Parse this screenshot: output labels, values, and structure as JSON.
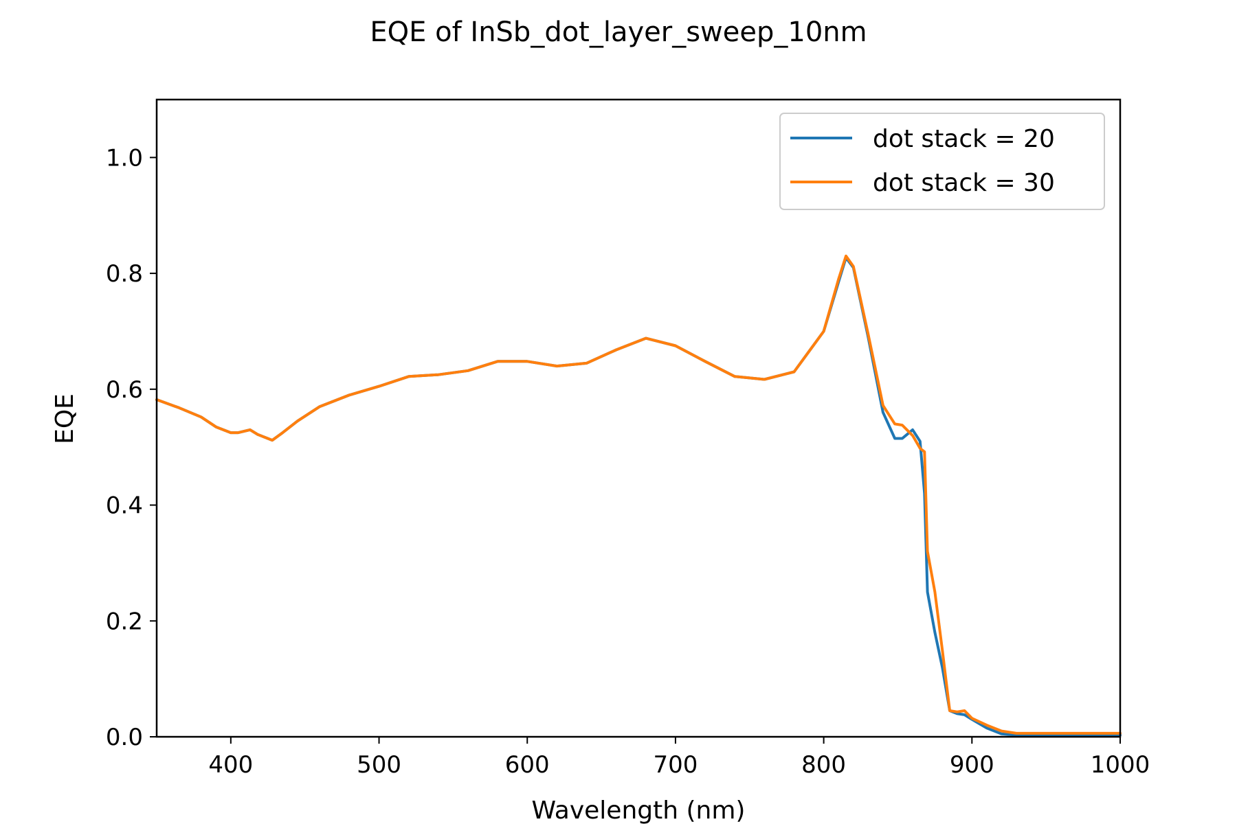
{
  "chart_data": {
    "type": "line",
    "title": "EQE of  InSb_dot_layer_sweep_10nm",
    "xlabel": "Wavelength (nm)",
    "ylabel": "EQE",
    "xlim": [
      350,
      1000
    ],
    "ylim": [
      0,
      1.1
    ],
    "xticks": [
      400,
      500,
      600,
      700,
      800,
      900,
      1000
    ],
    "xtick_labels": [
      "400",
      "500",
      "600",
      "700",
      "800",
      "900",
      "1000"
    ],
    "yticks": [
      0.0,
      0.2,
      0.4,
      0.6,
      0.8,
      1.0
    ],
    "ytick_labels": [
      "0.0",
      "0.2",
      "0.4",
      "0.6",
      "0.8",
      "1.0"
    ],
    "grid": false,
    "legend_position": "top-right",
    "series": [
      {
        "name": "dot stack = 20",
        "color": "#1f77b4",
        "x": [
          350,
          365,
          380,
          390,
          400,
          405,
          413,
          418,
          428,
          435,
          445,
          460,
          480,
          500,
          520,
          540,
          560,
          580,
          600,
          620,
          640,
          660,
          680,
          700,
          720,
          740,
          760,
          780,
          800,
          810,
          815,
          820,
          830,
          840,
          848,
          853,
          860,
          865,
          868,
          870,
          875,
          880,
          885,
          890,
          895,
          900,
          910,
          920,
          930,
          950,
          970,
          1000
        ],
        "y": [
          0.582,
          0.568,
          0.552,
          0.535,
          0.525,
          0.525,
          0.53,
          0.522,
          0.512,
          0.525,
          0.545,
          0.57,
          0.59,
          0.605,
          0.622,
          0.625,
          0.632,
          0.648,
          0.648,
          0.64,
          0.645,
          0.668,
          0.688,
          0.675,
          0.648,
          0.622,
          0.617,
          0.63,
          0.7,
          0.785,
          0.827,
          0.81,
          0.69,
          0.56,
          0.515,
          0.515,
          0.53,
          0.51,
          0.42,
          0.25,
          0.18,
          0.12,
          0.045,
          0.04,
          0.038,
          0.03,
          0.015,
          0.005,
          0.003,
          0.003,
          0.003,
          0.003
        ]
      },
      {
        "name": "dot stack = 30",
        "color": "#ff7f0e",
        "x": [
          350,
          365,
          380,
          390,
          400,
          405,
          413,
          418,
          428,
          435,
          445,
          460,
          480,
          500,
          520,
          540,
          560,
          580,
          600,
          620,
          640,
          660,
          680,
          700,
          720,
          740,
          760,
          780,
          800,
          810,
          815,
          820,
          830,
          840,
          848,
          853,
          860,
          865,
          868,
          870,
          875,
          880,
          885,
          890,
          895,
          900,
          910,
          920,
          930,
          950,
          970,
          1000
        ],
        "y": [
          0.582,
          0.568,
          0.552,
          0.535,
          0.525,
          0.525,
          0.53,
          0.522,
          0.512,
          0.525,
          0.545,
          0.57,
          0.59,
          0.605,
          0.622,
          0.625,
          0.632,
          0.648,
          0.648,
          0.64,
          0.645,
          0.668,
          0.688,
          0.675,
          0.648,
          0.622,
          0.617,
          0.63,
          0.7,
          0.79,
          0.83,
          0.812,
          0.695,
          0.572,
          0.54,
          0.538,
          0.52,
          0.498,
          0.492,
          0.32,
          0.25,
          0.15,
          0.045,
          0.043,
          0.045,
          0.032,
          0.02,
          0.01,
          0.006,
          0.006,
          0.006,
          0.006
        ]
      }
    ]
  }
}
